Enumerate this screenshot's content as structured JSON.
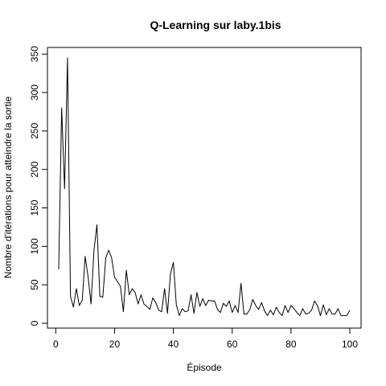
{
  "chart_data": {
    "type": "line",
    "title": "Q-Learning sur laby.1bis",
    "xlabel": "Épisode",
    "ylabel": "Nombre d'itérations pour atteindre la sortie",
    "xlim": [
      1,
      100
    ],
    "ylim": [
      0,
      345
    ],
    "xticks": [
      0,
      20,
      40,
      60,
      80,
      100
    ],
    "yticks": [
      0,
      50,
      100,
      150,
      200,
      250,
      300,
      350
    ],
    "grid": false,
    "legend": "none",
    "series": [
      {
        "x": [
          1,
          2,
          3,
          4,
          5,
          6,
          7,
          8,
          9,
          10,
          11,
          12,
          13,
          14,
          15,
          16,
          17,
          18,
          19,
          20,
          21,
          22,
          23,
          24,
          25,
          26,
          27,
          28,
          29,
          30,
          31,
          32,
          33,
          34,
          35,
          36,
          37,
          38,
          39,
          40,
          41,
          42,
          43,
          44,
          45,
          46,
          47,
          48,
          49,
          50,
          51,
          52,
          53,
          54,
          55,
          56,
          57,
          58,
          59,
          60,
          61,
          62,
          63,
          64,
          65,
          66,
          67,
          68,
          69,
          70,
          71,
          72,
          73,
          74,
          75,
          76,
          77,
          78,
          79,
          80,
          81,
          82,
          83,
          84,
          85,
          86,
          87,
          88,
          89,
          90,
          91,
          92,
          93,
          94,
          95,
          96,
          97,
          98,
          99,
          100
        ],
        "y": [
          70,
          280,
          175,
          345,
          35,
          21,
          45,
          23,
          30,
          87,
          60,
          25,
          95,
          128,
          35,
          34,
          85,
          95,
          85,
          60,
          54,
          48,
          15,
          69,
          37,
          45,
          40,
          25,
          37,
          25,
          22,
          18,
          33,
          27,
          17,
          15,
          45,
          13,
          64,
          79,
          24,
          10,
          19,
          15,
          16,
          37,
          13,
          40,
          22,
          32,
          23,
          30,
          29,
          29,
          18,
          14,
          26,
          22,
          29,
          14,
          23,
          14,
          52,
          12,
          12,
          18,
          31,
          23,
          18,
          27,
          16,
          10,
          17,
          11,
          21,
          14,
          10,
          23,
          14,
          23,
          19,
          14,
          10,
          19,
          12,
          13,
          17,
          29,
          23,
          10,
          24,
          11,
          19,
          12,
          12,
          19,
          10,
          10,
          10,
          17
        ]
      }
    ]
  }
}
